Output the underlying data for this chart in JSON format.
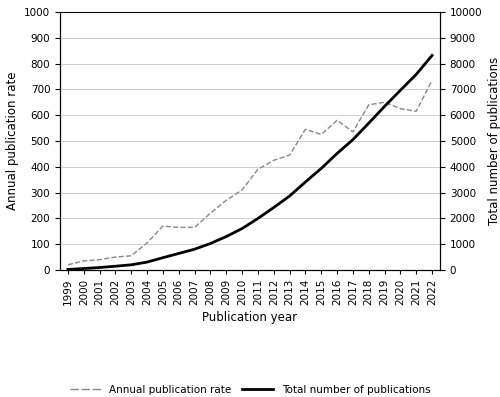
{
  "years": [
    1999,
    2000,
    2001,
    2002,
    2003,
    2004,
    2005,
    2006,
    2007,
    2008,
    2009,
    2010,
    2011,
    2012,
    2013,
    2014,
    2015,
    2016,
    2017,
    2018,
    2019,
    2020,
    2021,
    2022
  ],
  "annual_rate": [
    20,
    35,
    40,
    50,
    55,
    105,
    170,
    165,
    165,
    220,
    270,
    310,
    390,
    425,
    445,
    545,
    525,
    580,
    535,
    640,
    650,
    625,
    615,
    735
  ],
  "total_pubs": [
    20,
    55,
    95,
    145,
    200,
    305,
    475,
    640,
    805,
    1025,
    1295,
    1605,
    1995,
    2420,
    2865,
    3410,
    3935,
    4515,
    5050,
    5690,
    6340,
    6965,
    7580,
    8315
  ],
  "ylabel_left": "Annual publication rate",
  "ylabel_right": "Total number of publications",
  "xlabel": "Publication year",
  "ylim_left": [
    0,
    1000
  ],
  "ylim_right": [
    0,
    10000
  ],
  "yticks_left": [
    0,
    100,
    200,
    300,
    400,
    500,
    600,
    700,
    800,
    900,
    1000
  ],
  "yticks_right": [
    0,
    1000,
    2000,
    3000,
    4000,
    5000,
    6000,
    7000,
    8000,
    9000,
    10000
  ],
  "dashed_color": "#888888",
  "solid_color": "#000000",
  "legend_dashed": "Annual publication rate",
  "legend_solid": "Total number of publications",
  "background_color": "#ffffff",
  "grid_color": "#c8c8c8",
  "tick_fontsize": 7.5,
  "label_fontsize": 8.5,
  "legend_fontsize": 7.5
}
